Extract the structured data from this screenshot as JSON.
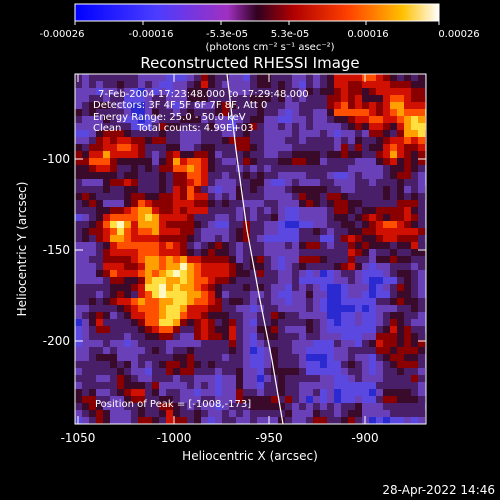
{
  "colorbar": {
    "ticks": [
      "-0.00026",
      "-0.00016",
      "-5.3e-05",
      "5.3e-05",
      "0.00016",
      "0.00026"
    ],
    "unit_label": "(photons cm⁻² s⁻¹ asec⁻²)"
  },
  "plot": {
    "title": "Reconstructed RHESSI Image",
    "xlabel": "Heliocentric X (arcsec)",
    "ylabel": "Heliocentric Y (arcsec)",
    "xticks": [
      "-1050",
      "-1000",
      "-950",
      "-900"
    ],
    "yticks": [
      "-100",
      "-150",
      "-200"
    ],
    "xlim": [
      -1052,
      -928
    ],
    "ylim": [
      -245,
      -60
    ]
  },
  "info": {
    "line1": "7-Feb-2004 17:23:48.000 to 17:29:48.000",
    "line2": "Detectors: 3F 4F 5F 6F 7F 8F, Att 0",
    "line3": "Energy Range: 25.0 - 50.0 keV",
    "line4": "Clean     Total counts: 4.99E+03",
    "peak": "Position of Peak = [-1008,-173]"
  },
  "footer": {
    "timestamp": "28-Apr-2022 14:46"
  }
}
